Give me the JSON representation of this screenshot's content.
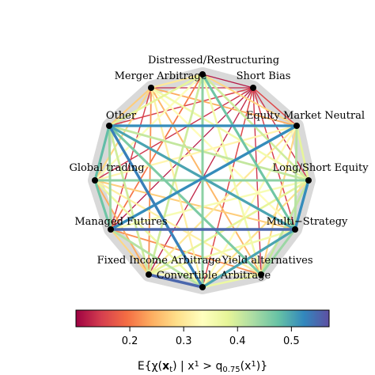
{
  "diagram": {
    "nodes": [
      {
        "id": "distressed",
        "label": "Distressed/Restructuring"
      },
      {
        "id": "short_bias",
        "label": "Short Bias"
      },
      {
        "id": "equity_mkt_neutral",
        "label": "Equity Market Neutral"
      },
      {
        "id": "long_short",
        "label": "Long/Short Equity"
      },
      {
        "id": "multi_strategy",
        "label": "Multi−Strategy"
      },
      {
        "id": "yield_alt",
        "label": "Yield alternatives"
      },
      {
        "id": "convertible",
        "label": "Convertible Arbitrage"
      },
      {
        "id": "fixed_income",
        "label": "Fixed Income Arbitrage"
      },
      {
        "id": "managed_futures",
        "label": "Managed Futures"
      },
      {
        "id": "global_trading",
        "label": "Global trading"
      },
      {
        "id": "other",
        "label": "Other"
      },
      {
        "id": "merger_arb",
        "label": "Merger Arbitrage"
      }
    ],
    "edges": [
      {
        "from": "short_bias",
        "to": "distressed",
        "value": 0.12
      },
      {
        "from": "short_bias",
        "to": "merger_arb",
        "value": 0.13
      },
      {
        "from": "short_bias",
        "to": "other",
        "value": 0.15
      },
      {
        "from": "short_bias",
        "to": "equity_mkt_neutral",
        "value": 0.16
      },
      {
        "from": "short_bias",
        "to": "long_short",
        "value": 0.14
      },
      {
        "from": "short_bias",
        "to": "global_trading",
        "value": 0.14
      },
      {
        "from": "short_bias",
        "to": "managed_futures",
        "value": 0.12
      },
      {
        "from": "short_bias",
        "to": "multi_strategy",
        "value": 0.15
      },
      {
        "from": "short_bias",
        "to": "fixed_income",
        "value": 0.13
      },
      {
        "from": "short_bias",
        "to": "convertible",
        "value": 0.16
      },
      {
        "from": "short_bias",
        "to": "yield_alt",
        "value": 0.14
      },
      {
        "from": "distressed",
        "to": "merger_arb",
        "value": 0.3
      },
      {
        "from": "distressed",
        "to": "other",
        "value": 0.38
      },
      {
        "from": "distressed",
        "to": "equity_mkt_neutral",
        "value": 0.28
      },
      {
        "from": "distressed",
        "to": "long_short",
        "value": 0.4
      },
      {
        "from": "distressed",
        "to": "global_trading",
        "value": 0.34
      },
      {
        "from": "distressed",
        "to": "managed_futures",
        "value": 0.2
      },
      {
        "from": "distressed",
        "to": "multi_strategy",
        "value": 0.47
      },
      {
        "from": "distressed",
        "to": "fixed_income",
        "value": 0.4
      },
      {
        "from": "distressed",
        "to": "convertible",
        "value": 0.45
      },
      {
        "from": "distressed",
        "to": "yield_alt",
        "value": 0.36
      },
      {
        "from": "merger_arb",
        "to": "other",
        "value": 0.27
      },
      {
        "from": "merger_arb",
        "to": "equity_mkt_neutral",
        "value": 0.24
      },
      {
        "from": "merger_arb",
        "to": "long_short",
        "value": 0.36
      },
      {
        "from": "merger_arb",
        "to": "global_trading",
        "value": 0.28
      },
      {
        "from": "merger_arb",
        "to": "managed_futures",
        "value": 0.15
      },
      {
        "from": "merger_arb",
        "to": "multi_strategy",
        "value": 0.33
      },
      {
        "from": "merger_arb",
        "to": "fixed_income",
        "value": 0.22
      },
      {
        "from": "merger_arb",
        "to": "convertible",
        "value": 0.31
      },
      {
        "from": "merger_arb",
        "to": "yield_alt",
        "value": 0.25
      },
      {
        "from": "other",
        "to": "equity_mkt_neutral",
        "value": 0.52
      },
      {
        "from": "other",
        "to": "long_short",
        "value": 0.41
      },
      {
        "from": "other",
        "to": "global_trading",
        "value": 0.48
      },
      {
        "from": "other",
        "to": "managed_futures",
        "value": 0.44
      },
      {
        "from": "other",
        "to": "multi_strategy",
        "value": 0.5
      },
      {
        "from": "other",
        "to": "fixed_income",
        "value": 0.4
      },
      {
        "from": "other",
        "to": "convertible",
        "value": 0.53
      },
      {
        "from": "other",
        "to": "yield_alt",
        "value": 0.46
      },
      {
        "from": "equity_mkt_neutral",
        "to": "long_short",
        "value": 0.38
      },
      {
        "from": "equity_mkt_neutral",
        "to": "global_trading",
        "value": 0.32
      },
      {
        "from": "equity_mkt_neutral",
        "to": "managed_futures",
        "value": 0.52
      },
      {
        "from": "equity_mkt_neutral",
        "to": "multi_strategy",
        "value": 0.42
      },
      {
        "from": "equity_mkt_neutral",
        "to": "fixed_income",
        "value": 0.3
      },
      {
        "from": "equity_mkt_neutral",
        "to": "convertible",
        "value": 0.33
      },
      {
        "from": "equity_mkt_neutral",
        "to": "yield_alt",
        "value": 0.28
      },
      {
        "from": "long_short",
        "to": "global_trading",
        "value": 0.45
      },
      {
        "from": "long_short",
        "to": "managed_futures",
        "value": 0.35
      },
      {
        "from": "long_short",
        "to": "multi_strategy",
        "value": 0.52
      },
      {
        "from": "long_short",
        "to": "fixed_income",
        "value": 0.38
      },
      {
        "from": "long_short",
        "to": "convertible",
        "value": 0.29
      },
      {
        "from": "long_short",
        "to": "yield_alt",
        "value": 0.41
      },
      {
        "from": "global_trading",
        "to": "managed_futures",
        "value": 0.47
      },
      {
        "from": "global_trading",
        "to": "multi_strategy",
        "value": 0.27
      },
      {
        "from": "global_trading",
        "to": "fixed_income",
        "value": 0.24
      },
      {
        "from": "global_trading",
        "to": "convertible",
        "value": 0.37
      },
      {
        "from": "global_trading",
        "to": "yield_alt",
        "value": 0.31
      },
      {
        "from": "managed_futures",
        "to": "multi_strategy",
        "value": 0.55
      },
      {
        "from": "managed_futures",
        "to": "fixed_income",
        "value": 0.28
      },
      {
        "from": "managed_futures",
        "to": "convertible",
        "value": 0.42
      },
      {
        "from": "managed_futures",
        "to": "yield_alt",
        "value": 0.22
      },
      {
        "from": "multi_strategy",
        "to": "fixed_income",
        "value": 0.36
      },
      {
        "from": "multi_strategy",
        "to": "convertible",
        "value": 0.5
      },
      {
        "from": "multi_strategy",
        "to": "yield_alt",
        "value": 0.44
      },
      {
        "from": "fixed_income",
        "to": "convertible",
        "value": 0.55
      },
      {
        "from": "fixed_income",
        "to": "yield_alt",
        "value": 0.34
      },
      {
        "from": "convertible",
        "to": "yield_alt",
        "value": 0.37
      }
    ]
  },
  "colorbar": {
    "min": 0.1,
    "max": 0.57,
    "ticks": [
      {
        "value": 0.2,
        "label": "0.2"
      },
      {
        "value": 0.3,
        "label": "0.3"
      },
      {
        "value": 0.4,
        "label": "0.4"
      },
      {
        "value": 0.5,
        "label": "0.5"
      }
    ],
    "palette": [
      "#9e0142",
      "#d53e4f",
      "#f46d43",
      "#fdae61",
      "#fee08b",
      "#ffffbf",
      "#e6f598",
      "#abdda4",
      "#66c2a5",
      "#3288bd",
      "#5e4fa2"
    ],
    "title": "E{χ(x_t) | x¹ > q0.75(x¹)}"
  }
}
